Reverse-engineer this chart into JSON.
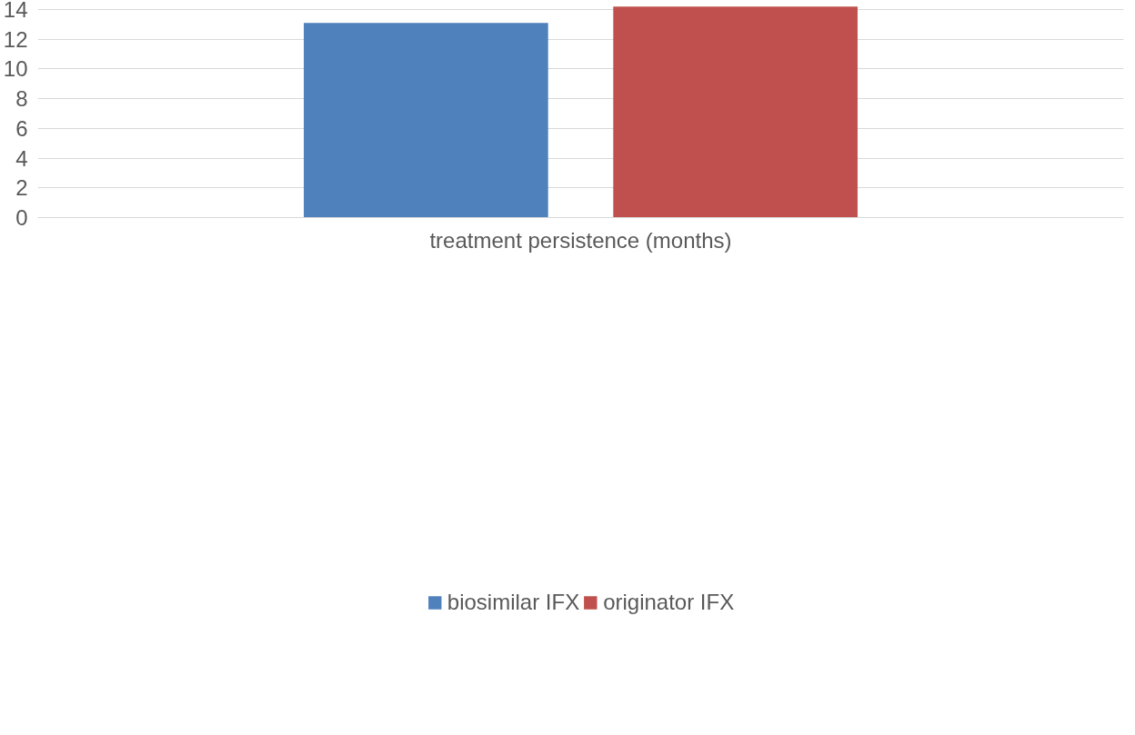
{
  "chart_data": {
    "type": "bar",
    "categories": [
      "treatment persistence (months)"
    ],
    "series": [
      {
        "name": "biosimilar IFX",
        "color": "#4f81bd",
        "values": [
          13.1
        ]
      },
      {
        "name": "originator IFX",
        "color": "#c0504d",
        "values": [
          14.2
        ]
      }
    ],
    "ylim": [
      0,
      14.3
    ],
    "yticks": [
      0,
      2,
      4,
      6,
      8,
      10,
      12,
      14
    ],
    "grid": "y",
    "legend": "bottom"
  }
}
